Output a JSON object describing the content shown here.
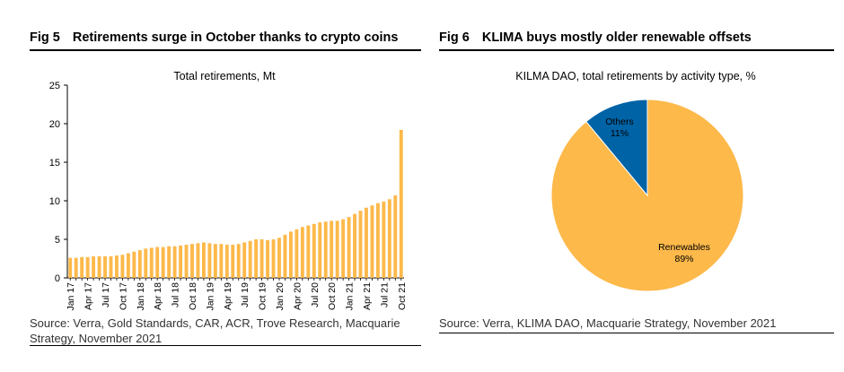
{
  "figures": {
    "left": {
      "number": "Fig 5",
      "title": "Retirements surge in October thanks to crypto coins",
      "source": "Source: Verra, Gold Standards, CAR, ACR, Trove Research, Macquarie Strategy, November 2021"
    },
    "right": {
      "number": "Fig 6",
      "title": "KLIMA buys mostly older renewable offsets",
      "source": "Source: Verra, KLIMA DAO, Macquarie Strategy, November 2021"
    }
  },
  "colors": {
    "bar": "#FDB94A",
    "renewables": "#FDB94A",
    "others": "#0063A6",
    "axis": "#000000"
  },
  "chart_data": [
    {
      "type": "bar",
      "title": "Total retirements, Mt",
      "xlabel": "",
      "ylabel": "",
      "ylim": [
        0,
        25
      ],
      "yticks": [
        0,
        5,
        10,
        15,
        20,
        25
      ],
      "categories": [
        "Jan 17",
        "Feb 17",
        "Mar 17",
        "Apr 17",
        "May 17",
        "Jun 17",
        "Jul 17",
        "Aug 17",
        "Sep 17",
        "Oct 17",
        "Nov 17",
        "Dec 17",
        "Jan 18",
        "Feb 18",
        "Mar 18",
        "Apr 18",
        "May 18",
        "Jun 18",
        "Jul 18",
        "Aug 18",
        "Sep 18",
        "Oct 18",
        "Nov 18",
        "Dec 18",
        "Jan 19",
        "Feb 19",
        "Mar 19",
        "Apr 19",
        "May 19",
        "Jun 19",
        "Jul 19",
        "Aug 19",
        "Sep 19",
        "Oct 19",
        "Nov 19",
        "Dec 19",
        "Jan 20",
        "Feb 20",
        "Mar 20",
        "Apr 20",
        "May 20",
        "Jun 20",
        "Jul 20",
        "Aug 20",
        "Sep 20",
        "Oct 20",
        "Nov 20",
        "Dec 20",
        "Jan 21",
        "Feb 21",
        "Mar 21",
        "Apr 21",
        "May 21",
        "Jun 21",
        "Jul 21",
        "Aug 21",
        "Sep 21",
        "Oct 21"
      ],
      "xtick_labels": [
        "Jan 17",
        "Apr 17",
        "Jul 17",
        "Oct 17",
        "Jan 18",
        "Apr 18",
        "Jul 18",
        "Oct 18",
        "Jan 19",
        "Apr 19",
        "Jul 19",
        "Oct 19",
        "Jan 20",
        "Apr 20",
        "Jul 20",
        "Oct 20",
        "Jan 21",
        "Apr 21",
        "Jul 21",
        "Oct 21"
      ],
      "values": [
        2.6,
        2.6,
        2.7,
        2.7,
        2.8,
        2.8,
        2.8,
        2.8,
        2.9,
        3.0,
        3.2,
        3.4,
        3.6,
        3.8,
        3.9,
        4.0,
        4.0,
        4.1,
        4.1,
        4.2,
        4.3,
        4.4,
        4.5,
        4.6,
        4.5,
        4.4,
        4.4,
        4.3,
        4.3,
        4.4,
        4.6,
        4.8,
        5.0,
        5.0,
        4.9,
        5.0,
        5.2,
        5.6,
        6.0,
        6.3,
        6.6,
        6.8,
        7.0,
        7.2,
        7.3,
        7.4,
        7.4,
        7.6,
        7.9,
        8.3,
        8.7,
        9.1,
        9.4,
        9.7,
        9.9,
        10.2,
        10.7,
        19.2
      ]
    },
    {
      "type": "pie",
      "title": "KILMA DAO, total retirements by activity type, %",
      "slices": [
        {
          "label": "Renewables",
          "value": 89,
          "display": "89%"
        },
        {
          "label": "Others",
          "value": 11,
          "display": "11%"
        }
      ]
    }
  ]
}
